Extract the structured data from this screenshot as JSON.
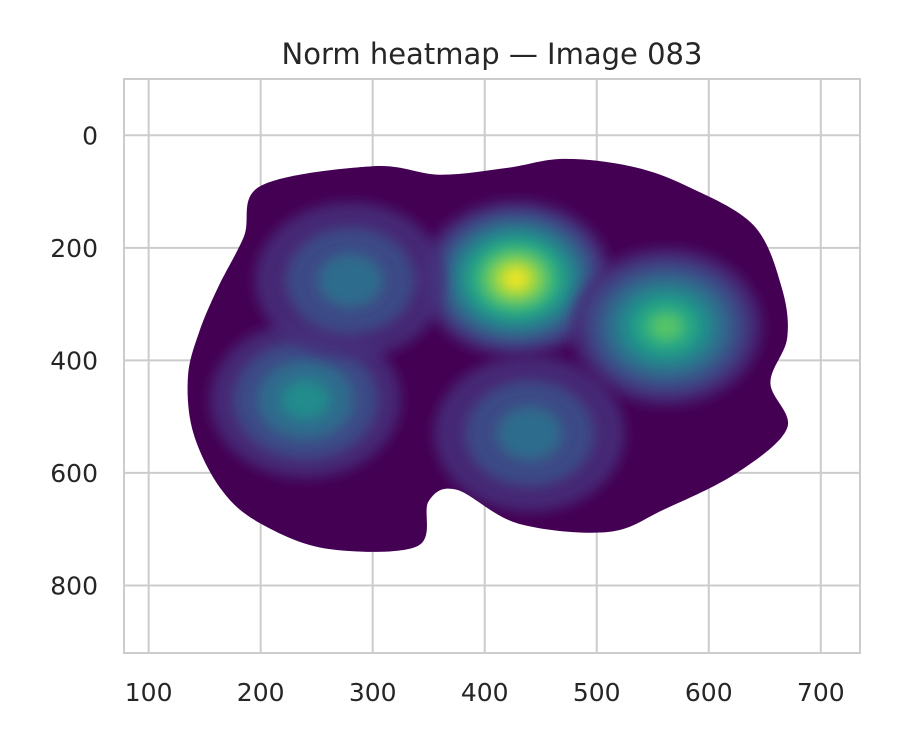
{
  "chart_data": {
    "type": "heatmap",
    "title": "Norm heatmap — Image 083",
    "xlabel": "",
    "ylabel": "",
    "xlim": [
      78,
      735
    ],
    "ylim": [
      920,
      -100
    ],
    "y_inverted": true,
    "grid": true,
    "colormap": "viridis",
    "x_ticks": [
      100,
      200,
      300,
      400,
      500,
      600,
      700
    ],
    "y_ticks": [
      0,
      200,
      400,
      600,
      800
    ],
    "region_outline": [
      [
        200,
        90
      ],
      [
        300,
        55
      ],
      [
        360,
        70
      ],
      [
        420,
        58
      ],
      [
        470,
        42
      ],
      [
        530,
        55
      ],
      [
        580,
        90
      ],
      [
        640,
        160
      ],
      [
        665,
        270
      ],
      [
        670,
        360
      ],
      [
        655,
        440
      ],
      [
        670,
        520
      ],
      [
        625,
        600
      ],
      [
        560,
        665
      ],
      [
        510,
        705
      ],
      [
        430,
        690
      ],
      [
        375,
        630
      ],
      [
        350,
        650
      ],
      [
        340,
        730
      ],
      [
        260,
        735
      ],
      [
        200,
        690
      ],
      [
        165,
        630
      ],
      [
        140,
        530
      ],
      [
        135,
        430
      ],
      [
        145,
        350
      ],
      [
        162,
        270
      ],
      [
        185,
        180
      ]
    ],
    "blobs": [
      {
        "x": 428,
        "y": 255,
        "intensity": 1.0
      },
      {
        "x": 562,
        "y": 340,
        "intensity": 0.78
      },
      {
        "x": 240,
        "y": 470,
        "intensity": 0.45
      },
      {
        "x": 280,
        "y": 258,
        "intensity": 0.4
      },
      {
        "x": 440,
        "y": 530,
        "intensity": 0.42
      }
    ],
    "colors": {
      "background": "#ffffff",
      "grid": "#cccccc",
      "axis_frame": "#cccccc",
      "region_base": "#440154",
      "peak": "#fde725"
    }
  }
}
